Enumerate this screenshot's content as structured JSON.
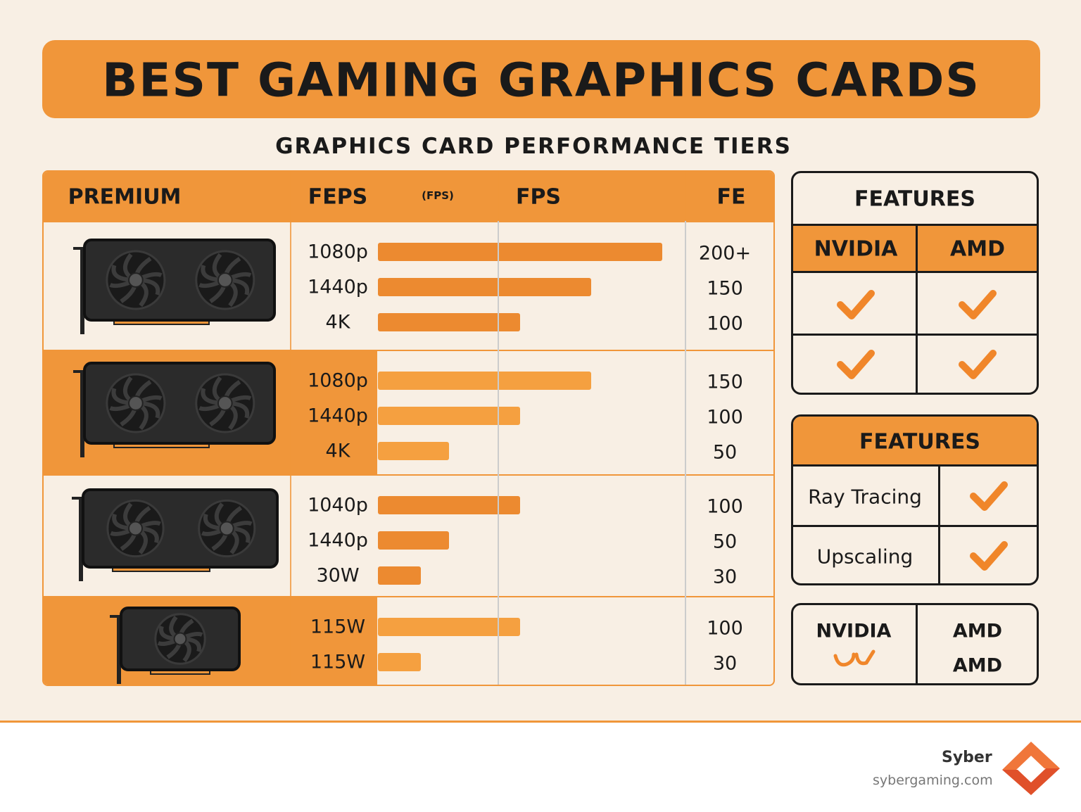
{
  "header": {
    "title": "BEST GAMING GRAPHICS CARDS",
    "subtitle": "GRAPHICS CARD PERFORMANCE TIERS"
  },
  "tier_table": {
    "columns": [
      "PREMIUM",
      "FEPS",
      "FPS",
      "FE"
    ],
    "column_note": "(FPS)",
    "tiers": [
      {
        "rows": [
          {
            "label": "1080p",
            "value": 200,
            "value_label": "200+"
          },
          {
            "label": "1440p",
            "value": 150
          },
          {
            "label": "4K",
            "value": 100
          }
        ]
      },
      {
        "rows": [
          {
            "label": "1080p",
            "value": 150
          },
          {
            "label": "1440p",
            "value": 100
          },
          {
            "label": "4K",
            "value": 50
          }
        ]
      },
      {
        "rows": [
          {
            "label": "1040p",
            "value": 100
          },
          {
            "label": "1440p",
            "value": 50
          },
          {
            "label": "30W",
            "value": 30
          }
        ]
      },
      {
        "rows": [
          {
            "label": "115W",
            "value": 100
          },
          {
            "label": "115W",
            "value": 30
          }
        ]
      }
    ]
  },
  "features_brands": {
    "title": "FEATURES",
    "columns": [
      "NVIDIA",
      "AMD"
    ]
  },
  "features_list": {
    "title": "FEATURES",
    "rows": [
      "Ray Tracing",
      "Upscaling"
    ]
  },
  "brand_box": {
    "left": "NVIDIA",
    "right": [
      "AMD",
      "AMD"
    ]
  },
  "footer": {
    "brand": "Syber",
    "site": "sybergaming.com"
  }
}
